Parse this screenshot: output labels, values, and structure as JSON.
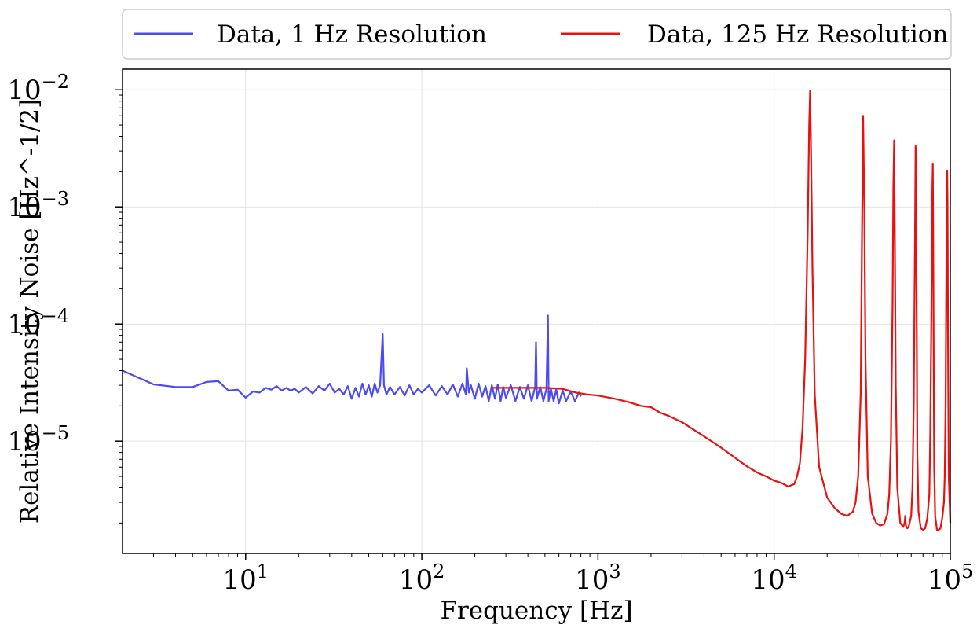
{
  "chart_data": {
    "type": "line",
    "title": "",
    "xlabel": "Frequency [Hz]",
    "ylabel": "Relative Intensity Noise [Hz^-1/2]",
    "xscale": "log",
    "yscale": "log",
    "xlim": [
      2,
      100000
    ],
    "ylim": [
      1.1e-06,
      0.015
    ],
    "grid": true,
    "legend": {
      "position": "top, above plot",
      "ncol": 2
    },
    "x_ticks": [
      {
        "value": 10,
        "base": "10",
        "exp": "1"
      },
      {
        "value": 100,
        "base": "10",
        "exp": "2"
      },
      {
        "value": 1000,
        "base": "10",
        "exp": "3"
      },
      {
        "value": 10000,
        "base": "10",
        "exp": "4"
      },
      {
        "value": 100000,
        "base": "10",
        "exp": "5"
      }
    ],
    "y_ticks": [
      {
        "value": 1e-05,
        "base": "10",
        "exp": "−5"
      },
      {
        "value": 0.0001,
        "base": "10",
        "exp": "−4"
      },
      {
        "value": 0.001,
        "base": "10",
        "exp": "−3"
      },
      {
        "value": 0.01,
        "base": "10",
        "exp": "−2"
      }
    ],
    "series": [
      {
        "name": "Data, 1 Hz Resolution",
        "color": "#4b4bf0",
        "x": [
          2,
          3,
          4,
          5,
          6,
          7,
          8,
          9,
          10,
          11,
          12,
          13,
          14,
          15,
          16,
          17,
          18,
          19,
          20,
          22,
          24,
          26,
          28,
          30,
          32,
          34,
          36,
          38,
          40,
          42,
          44,
          46,
          48,
          50,
          52,
          54,
          56,
          58,
          60,
          61,
          63,
          66,
          70,
          75,
          80,
          85,
          90,
          95,
          100,
          110,
          120,
          130,
          140,
          150,
          160,
          170,
          178,
          180,
          185,
          190,
          200,
          210,
          220,
          230,
          240,
          250,
          260,
          270,
          280,
          290,
          300,
          320,
          340,
          360,
          380,
          400,
          420,
          440,
          445,
          450,
          470,
          490,
          510,
          520,
          525,
          540,
          560,
          580,
          600,
          630,
          660,
          700,
          740,
          780,
          800
        ],
        "y": [
          4e-05,
          3.05e-05,
          2.9e-05,
          2.9e-05,
          3.2e-05,
          3.25e-05,
          2.7e-05,
          2.75e-05,
          2.35e-05,
          2.65e-05,
          2.6e-05,
          2.85e-05,
          2.75e-05,
          2.95e-05,
          2.7e-05,
          2.85e-05,
          2.7e-05,
          2.8e-05,
          2.6e-05,
          2.9e-05,
          2.55e-05,
          2.95e-05,
          2.7e-05,
          3.1e-05,
          2.6e-05,
          2.8e-05,
          2.5e-05,
          2.95e-05,
          2.3e-05,
          2.85e-05,
          2.4e-05,
          3.1e-05,
          2.5e-05,
          3e-05,
          2.4e-05,
          3.1e-05,
          2.6e-05,
          3e-05,
          8.2e-05,
          3e-05,
          2.5e-05,
          2.9e-05,
          2.5e-05,
          2.9e-05,
          2.45e-05,
          3e-05,
          2.5e-05,
          2.8e-05,
          2.6e-05,
          3e-05,
          2.45e-05,
          2.95e-05,
          2.5e-05,
          3.05e-05,
          2.4e-05,
          3.1e-05,
          2.5e-05,
          4.2e-05,
          2.6e-05,
          3e-05,
          2.3e-05,
          3.1e-05,
          2.4e-05,
          2.95e-05,
          2.2e-05,
          3e-05,
          2.3e-05,
          3.05e-05,
          2.2e-05,
          2.9e-05,
          2.35e-05,
          3e-05,
          2.2e-05,
          2.9e-05,
          2.3e-05,
          3e-05,
          2.2e-05,
          2.9e-05,
          7e-05,
          2.3e-05,
          2.9e-05,
          2.2e-05,
          2.8e-05,
          0.000118,
          2.2e-05,
          2.8e-05,
          2.2e-05,
          2.75e-05,
          2.1e-05,
          2.7e-05,
          2.2e-05,
          2.65e-05,
          2.2e-05,
          2.6e-05,
          2.4e-05
        ]
      },
      {
        "name": "Data, 125 Hz Resolution",
        "color": "#e8110f",
        "x": [
          250,
          375,
          500,
          625,
          750,
          875,
          1000,
          1250,
          1500,
          1750,
          2000,
          2250,
          2500,
          3000,
          3500,
          4000,
          5000,
          6000,
          7000,
          8000,
          9000,
          10000,
          11000,
          12000,
          13000,
          13500,
          14000,
          14500,
          15000,
          15500,
          15800,
          16000,
          16200,
          16500,
          17000,
          18000,
          20000,
          22000,
          24000,
          26000,
          28000,
          29000,
          30000,
          31000,
          31500,
          32000,
          32500,
          33000,
          34000,
          36000,
          38000,
          40000,
          42000,
          44000,
          45000,
          46000,
          47000,
          47500,
          48000,
          48500,
          49000,
          50000,
          52000,
          54000,
          55000,
          55500,
          56000,
          57000,
          58000,
          60000,
          61000,
          62000,
          63000,
          63500,
          64000,
          64500,
          65000,
          66000,
          68000,
          70000,
          72000,
          74000,
          76000,
          77000,
          78000,
          79000,
          79500,
          80000,
          80500,
          81000,
          82000,
          84000,
          86000,
          88000,
          90000,
          92000,
          93000,
          94000,
          95000,
          95500,
          96000,
          96500,
          97000,
          98000,
          100000
        ],
        "y": [
          2.85e-05,
          2.85e-05,
          2.85e-05,
          2.8e-05,
          2.6e-05,
          2.5e-05,
          2.45e-05,
          2.3e-05,
          2.15e-05,
          2e-05,
          1.95e-05,
          1.75e-05,
          1.65e-05,
          1.45e-05,
          1.25e-05,
          1.1e-05,
          8.8e-06,
          7.2e-06,
          6.1e-06,
          5.4e-06,
          5e-06,
          4.6e-06,
          4.4e-06,
          4.1e-06,
          4.3e-06,
          5e-06,
          6.5e-06,
          1.3e-05,
          5e-05,
          0.0006,
          0.005,
          0.0098,
          0.003,
          0.0003,
          2.5e-05,
          6e-06,
          3.3e-06,
          2.7e-06,
          2.4e-06,
          2.3e-06,
          2.5e-06,
          3e-06,
          5e-06,
          2.5e-05,
          0.0005,
          0.006,
          0.001,
          5e-05,
          5e-06,
          2.4e-06,
          2e-06,
          1.9e-06,
          1.95e-06,
          2.4e-06,
          3.5e-06,
          1e-05,
          0.00015,
          0.0015,
          0.0037,
          0.0004,
          3e-05,
          4e-06,
          2e-06,
          1.85e-06,
          2e-06,
          2.3e-06,
          1.9e-06,
          1.8e-06,
          1.85e-06,
          2.3e-06,
          4e-06,
          2e-05,
          0.0005,
          0.0033,
          0.001,
          8e-05,
          8e-06,
          2.5e-06,
          1.8e-06,
          1.75e-06,
          1.8e-06,
          2.2e-06,
          3.5e-06,
          1.2e-05,
          0.0001,
          0.0012,
          0.00235,
          0.0004,
          4e-05,
          6e-06,
          2.3e-06,
          1.75e-06,
          1.75e-06,
          1.8e-06,
          2.2e-06,
          3e-06,
          5e-06,
          2e-05,
          0.0003,
          0.0015,
          0.00205,
          0.001,
          0.0001,
          5e-06,
          2e-06
        ]
      }
    ]
  }
}
